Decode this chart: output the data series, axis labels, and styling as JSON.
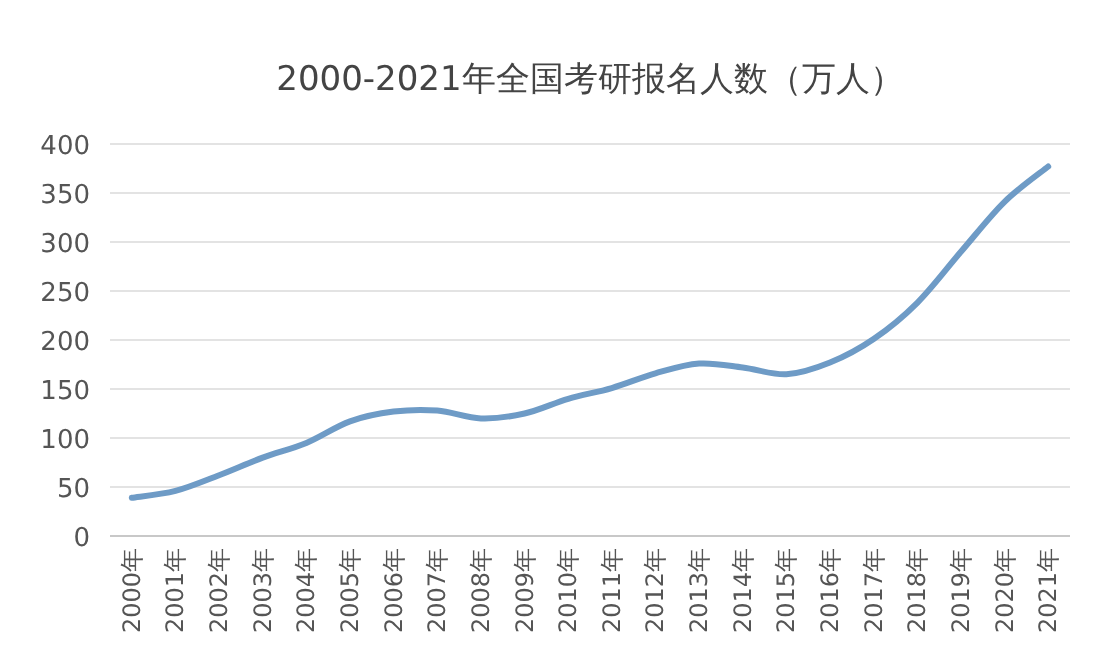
{
  "chart_data": {
    "type": "line",
    "title": "2000-2021年全国考研报名人数（万人）",
    "categories": [
      "2000年",
      "2001年",
      "2002年",
      "2003年",
      "2004年",
      "2005年",
      "2006年",
      "2007年",
      "2008年",
      "2009年",
      "2010年",
      "2011年",
      "2012年",
      "2013年",
      "2014年",
      "2015年",
      "2016年",
      "2017年",
      "2018年",
      "2019年",
      "2020年",
      "2021年"
    ],
    "series": [
      {
        "color": "#6e9bc6",
        "values": [
          39,
          46,
          62,
          80,
          95,
          117,
          127,
          128,
          120,
          125,
          140,
          151,
          166,
          176,
          172,
          165,
          177,
          201,
          238,
          290,
          341,
          377
        ]
      }
    ],
    "ylim": [
      0,
      400
    ],
    "yticks": [
      0,
      50,
      100,
      150,
      200,
      250,
      300,
      350,
      400
    ],
    "grid": "y",
    "marker": "none",
    "line_style": "solid"
  }
}
